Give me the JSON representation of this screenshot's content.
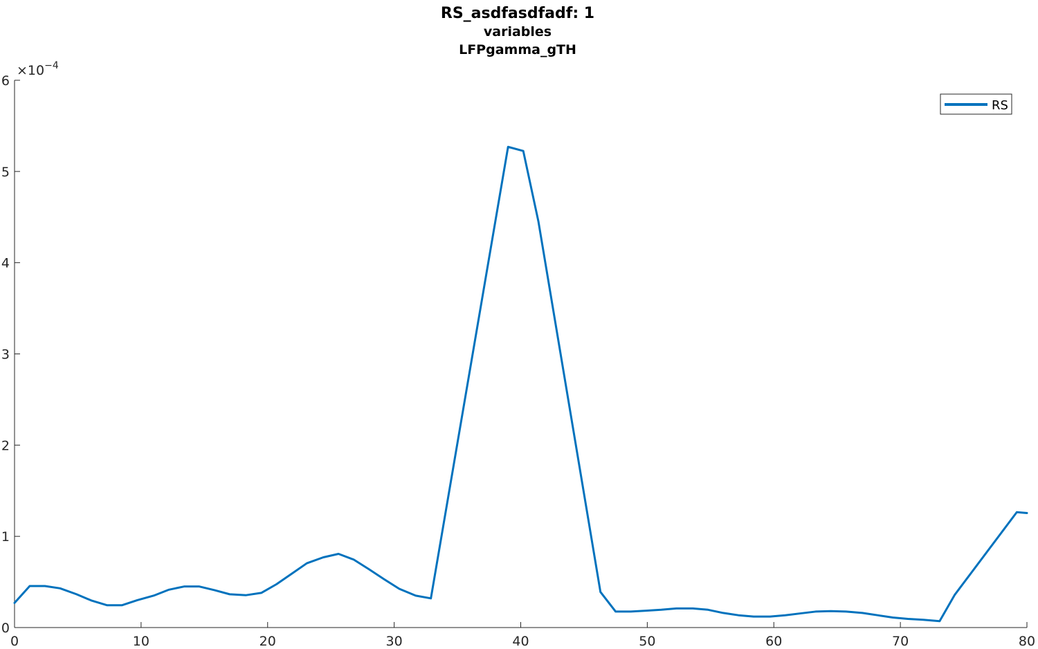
{
  "chart_data": {
    "type": "line",
    "title": [
      "RS_asdfasdfadf: 1",
      "variables",
      "LFPgamma_gTH"
    ],
    "xlabel": "",
    "ylabel": "",
    "xlim": [
      0,
      80
    ],
    "ylim": [
      0,
      0.0006
    ],
    "x_ticks": [
      0,
      10,
      20,
      30,
      40,
      50,
      60,
      70,
      80
    ],
    "y_ticks": [
      0,
      1,
      2,
      3,
      4,
      5,
      6
    ],
    "y_exponent_base": "×10",
    "y_exponent": "−4",
    "grid": false,
    "legend_position": "top-right",
    "series": [
      {
        "name": "RS",
        "color": "#0072BD",
        "x": [
          0,
          1.2,
          2.4,
          3.6,
          4.9,
          6.1,
          7.3,
          8.5,
          9.7,
          11.0,
          12.2,
          13.4,
          14.6,
          15.8,
          17.0,
          18.3,
          19.5,
          20.7,
          21.9,
          23.1,
          24.4,
          25.6,
          26.8,
          28.0,
          29.2,
          30.4,
          31.7,
          32.9,
          39.0,
          40.2,
          41.4,
          46.3,
          47.5,
          48.7,
          49.9,
          51.1,
          52.3,
          53.6,
          54.8,
          56.0,
          57.2,
          58.4,
          59.7,
          60.9,
          62.1,
          63.3,
          64.5,
          65.7,
          67.0,
          68.2,
          69.4,
          70.6,
          71.8,
          73.1,
          74.3,
          79.2,
          80.0
        ],
        "y": [
          2.7e-05,
          4.55e-05,
          4.55e-05,
          4.3e-05,
          3.65e-05,
          2.95e-05,
          2.45e-05,
          2.45e-05,
          3e-05,
          3.5e-05,
          4.15e-05,
          4.5e-05,
          4.5e-05,
          4.1e-05,
          3.65e-05,
          3.55e-05,
          3.8e-05,
          4.75e-05,
          5.9e-05,
          7.05e-05,
          7.7e-05,
          8.08e-05,
          7.45e-05,
          6.4e-05,
          5.3e-05,
          4.25e-05,
          3.5e-05,
          3.2e-05,
          0.000527,
          0.0005225,
          0.000445,
          3.9e-05,
          1.75e-05,
          1.75e-05,
          1.85e-05,
          1.95e-05,
          2.1e-05,
          2.1e-05,
          1.95e-05,
          1.6e-05,
          1.35e-05,
          1.2e-05,
          1.2e-05,
          1.35e-05,
          1.55e-05,
          1.75e-05,
          1.8e-05,
          1.75e-05,
          1.6e-05,
          1.35e-05,
          1.1e-05,
          9.5e-06,
          8.5e-06,
          7e-06,
          3.6e-05,
          0.0001265,
          0.0001255
        ]
      }
    ]
  }
}
